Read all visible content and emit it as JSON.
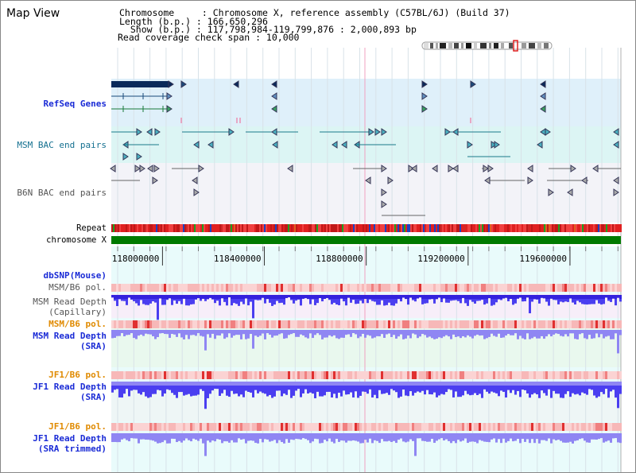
{
  "view": {
    "title": "Map View"
  },
  "header": {
    "chromosome_line": "Chromosome     : Chromosome X, reference assembly (C57BL/6J) (Build 37)",
    "length_line": "Length (b.p.) : 166,650,296",
    "show_line": "  Show (b.p.) : 117,798,984-119,799,876 : 2,000,893 bp",
    "coverage_line": "Read coverage check span : 10,000"
  },
  "tracks": {
    "refseq": "RefSeq Genes",
    "msm_bac": "MSM BAC end pairs",
    "b6n_bac": "B6N BAC end pairs",
    "repeat": "Repeat",
    "chromosome": "chromosome X",
    "dbsnp": "dbSNP(Mouse)",
    "msm_b6_pol_1": "MSM/B6 pol.",
    "msm_read_depth_cap": "MSM Read Depth\n(Capillary)",
    "msm_b6_pol_2": "MSM/B6 pol.",
    "msm_read_depth_sra": "MSM Read Depth\n(SRA)",
    "jf1_b6_pol_1": "JF1/B6 pol.",
    "jf1_read_depth_sra": "JF1 Read Depth\n(SRA)",
    "jf1_b6_pol_2": "JF1/B6 pol.",
    "jf1_read_depth_trim": "JF1 Read Depth\n(SRA trimmed)"
  },
  "axis": {
    "ticks": [
      118000000,
      118400000,
      118800000,
      119200000,
      119600000
    ],
    "tick_labels": [
      "118000000",
      "118400000",
      "118800000",
      "119200000",
      "119600000"
    ],
    "range": [
      117798984,
      119799876
    ]
  },
  "colors": {
    "refseq_band": "#dff0fa",
    "msm_band": "#dcf5f4",
    "b6n_band": "#f3f3f8",
    "chromosome_bar": "#007a00",
    "lower_band": "#e9fbfb",
    "read_depth_blue": "#4a3ef0",
    "read_depth_light": "#8f86f3",
    "pol_pink": "#f7b8b8",
    "pol_red": "#e03030"
  }
}
